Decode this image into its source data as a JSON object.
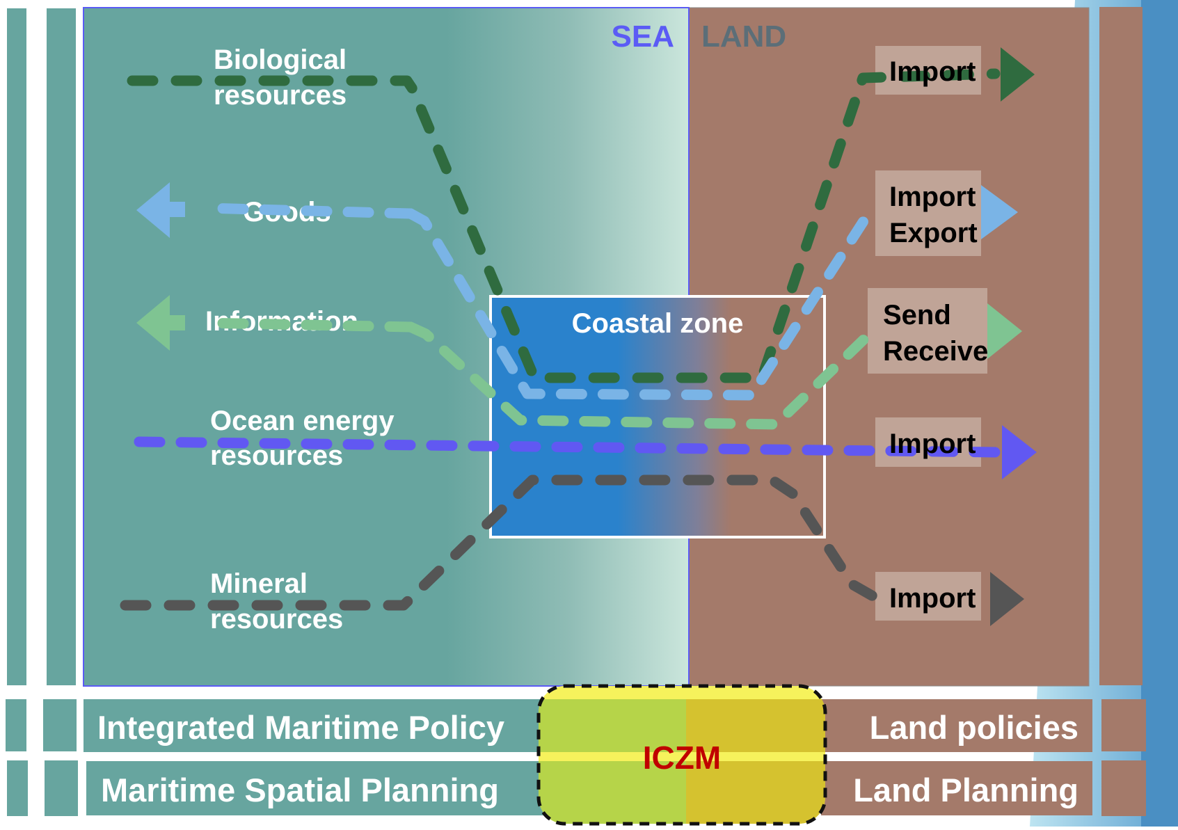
{
  "headers": {
    "sea": "SEA",
    "land": "LAND"
  },
  "coastal_zone_label": "Coastal zone",
  "flows": {
    "biological": {
      "label_1": "Biological",
      "label_2": "resources",
      "box_1": "Import",
      "box_2": ""
    },
    "goods": {
      "label_1": "Goods",
      "label_2": "",
      "box_1": "Import",
      "box_2": "Export"
    },
    "information": {
      "label_1": "Information",
      "label_2": "",
      "box_1": "Send",
      "box_2": "Receive"
    },
    "energy": {
      "label_1": "Ocean energy",
      "label_2": "resources",
      "box_1": "Import",
      "box_2": ""
    },
    "mineral": {
      "label_1": "Mineral",
      "label_2": "resources",
      "box_1": "Import",
      "box_2": ""
    }
  },
  "bands": {
    "sea_policy": "Integrated Maritime Policy",
    "sea_planning": "Maritime Spatial Planning",
    "land_policy": "Land policies",
    "land_planning": "Land Planning",
    "center": "ICZM"
  },
  "colors": {
    "sea": "#67a59f",
    "land": "#a47a6a",
    "coastal_zone": "#2a82cc",
    "biological": "#2f6b3f",
    "goods": "#7ab4e6",
    "information": "#7fc492",
    "energy": "#6158f2",
    "mineral": "#555555",
    "iczm_text": "#c00000",
    "sea_header": "#5b5bf5",
    "land_header": "#5b6e78"
  }
}
